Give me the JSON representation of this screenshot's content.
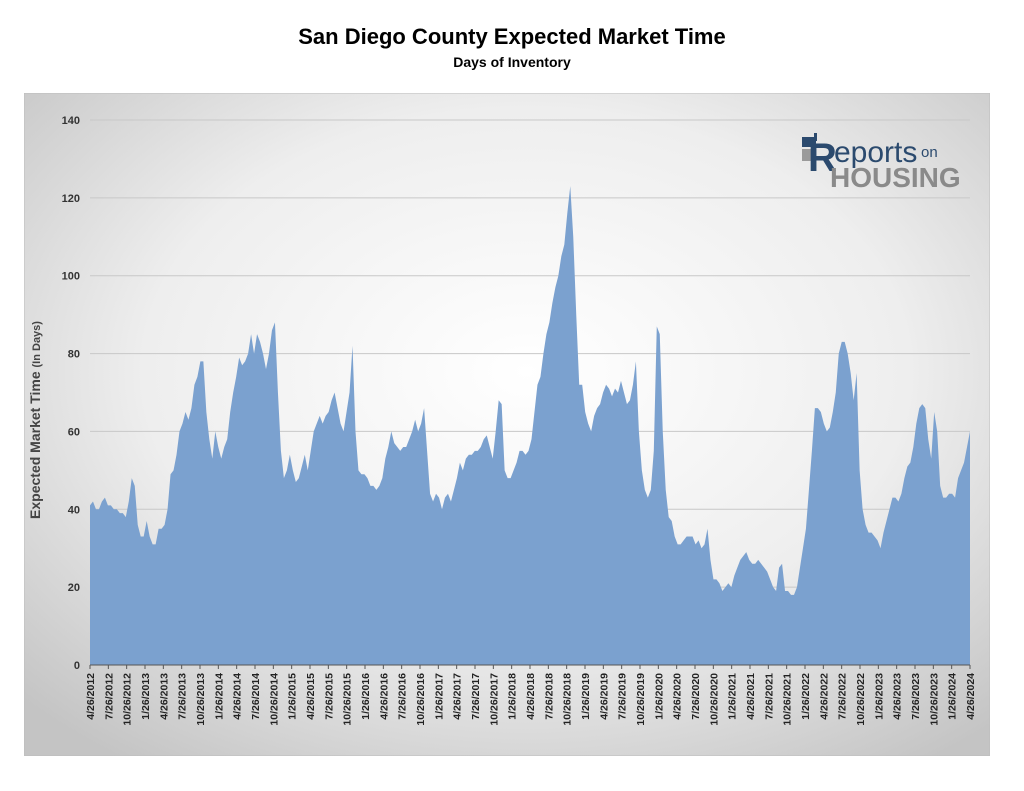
{
  "header": {
    "title": "San Diego County Expected Market Time",
    "subtitle": "Days of Inventory"
  },
  "logo": {
    "r": "R",
    "eports": "eports",
    "on": "on",
    "housing": "HOUSING",
    "icon": "house-icon",
    "color_primary": "#2b4a6e",
    "color_secondary": "#8a8a8a"
  },
  "chart_data": {
    "type": "area",
    "ylabel_main": "Expected Market Time",
    "ylabel_units": "(In Days)",
    "ylim": [
      0,
      140
    ],
    "yticks": [
      0,
      20,
      40,
      60,
      80,
      100,
      120,
      140
    ],
    "grid": true,
    "fill_color": "#7ba1cf",
    "x_tick_labels": [
      "4/26/2012",
      "7/26/2012",
      "10/26/2012",
      "1/26/2013",
      "4/26/2013",
      "7/26/2013",
      "10/26/2013",
      "1/26/2014",
      "4/26/2014",
      "7/26/2014",
      "10/26/2014",
      "1/26/2015",
      "4/26/2015",
      "7/26/2015",
      "10/26/2015",
      "1/26/2016",
      "4/26/2016",
      "7/26/2016",
      "10/26/2016",
      "1/26/2017",
      "4/26/2017",
      "7/26/2017",
      "10/26/2017",
      "1/26/2018",
      "4/26/2018",
      "7/26/2018",
      "10/26/2018",
      "1/26/2019",
      "4/26/2019",
      "7/26/2019",
      "10/26/2019",
      "1/26/2020",
      "4/26/2020",
      "7/26/2020",
      "10/26/2020",
      "1/26/2021",
      "4/26/2021",
      "7/26/2021",
      "10/26/2021",
      "1/26/2022",
      "4/26/2022",
      "7/26/2022",
      "10/26/2022",
      "1/26/2023",
      "4/26/2023",
      "7/26/2023",
      "10/26/2023",
      "1/26/2024",
      "4/26/2024"
    ],
    "values": [
      41,
      42,
      40,
      40,
      42,
      43,
      41,
      41,
      40,
      40,
      39,
      39,
      38,
      42,
      48,
      46,
      36,
      33,
      33,
      37,
      33,
      31,
      31,
      35,
      35,
      36,
      40,
      49,
      50,
      54,
      60,
      62,
      65,
      63,
      66,
      72,
      74,
      78,
      78,
      65,
      58,
      53,
      60,
      56,
      53,
      56,
      58,
      65,
      70,
      74,
      79,
      77,
      78,
      80,
      85,
      80,
      85,
      83,
      80,
      76,
      80,
      86,
      88,
      70,
      55,
      48,
      50,
      54,
      50,
      47,
      48,
      51,
      54,
      50,
      55,
      60,
      62,
      64,
      62,
      64,
      65,
      68,
      70,
      66,
      62,
      60,
      65,
      70,
      82,
      60,
      50,
      49,
      49,
      48,
      46,
      46,
      45,
      46,
      48,
      53,
      56,
      60,
      57,
      56,
      55,
      56,
      56,
      58,
      60,
      63,
      60,
      62,
      66,
      55,
      44,
      42,
      44,
      43,
      40,
      43,
      44,
      42,
      45,
      48,
      52,
      50,
      53,
      54,
      54,
      55,
      55,
      56,
      58,
      59,
      56,
      53,
      60,
      68,
      67,
      50,
      48,
      48,
      50,
      52,
      55,
      55,
      54,
      55,
      58,
      65,
      72,
      74,
      80,
      85,
      88,
      93,
      97,
      100,
      105,
      108,
      116,
      123,
      110,
      90,
      72,
      72,
      65,
      62,
      60,
      64,
      66,
      67,
      70,
      72,
      71,
      69,
      71,
      70,
      73,
      70,
      67,
      68,
      72,
      78,
      60,
      50,
      45,
      43,
      45,
      55,
      87,
      85,
      60,
      45,
      38,
      37,
      33,
      31,
      31,
      32,
      33,
      33,
      33,
      31,
      32,
      30,
      31,
      35,
      27,
      22,
      22,
      21,
      19,
      20,
      21,
      20,
      23,
      25,
      27,
      28,
      29,
      27,
      26,
      26,
      27,
      26,
      25,
      24,
      22,
      20,
      19,
      25,
      26,
      19,
      19,
      18,
      18,
      20,
      25,
      30,
      35,
      45,
      55,
      66,
      66,
      65,
      62,
      60,
      61,
      65,
      70,
      80,
      83,
      83,
      80,
      75,
      68,
      75,
      50,
      40,
      36,
      34,
      34,
      33,
      32,
      30,
      34,
      37,
      40,
      43,
      43,
      42,
      44,
      48,
      51,
      52,
      56,
      62,
      66,
      67,
      66,
      58,
      53,
      65,
      60,
      46,
      43,
      43,
      44,
      44,
      43,
      48,
      50,
      52,
      56,
      60
    ]
  }
}
